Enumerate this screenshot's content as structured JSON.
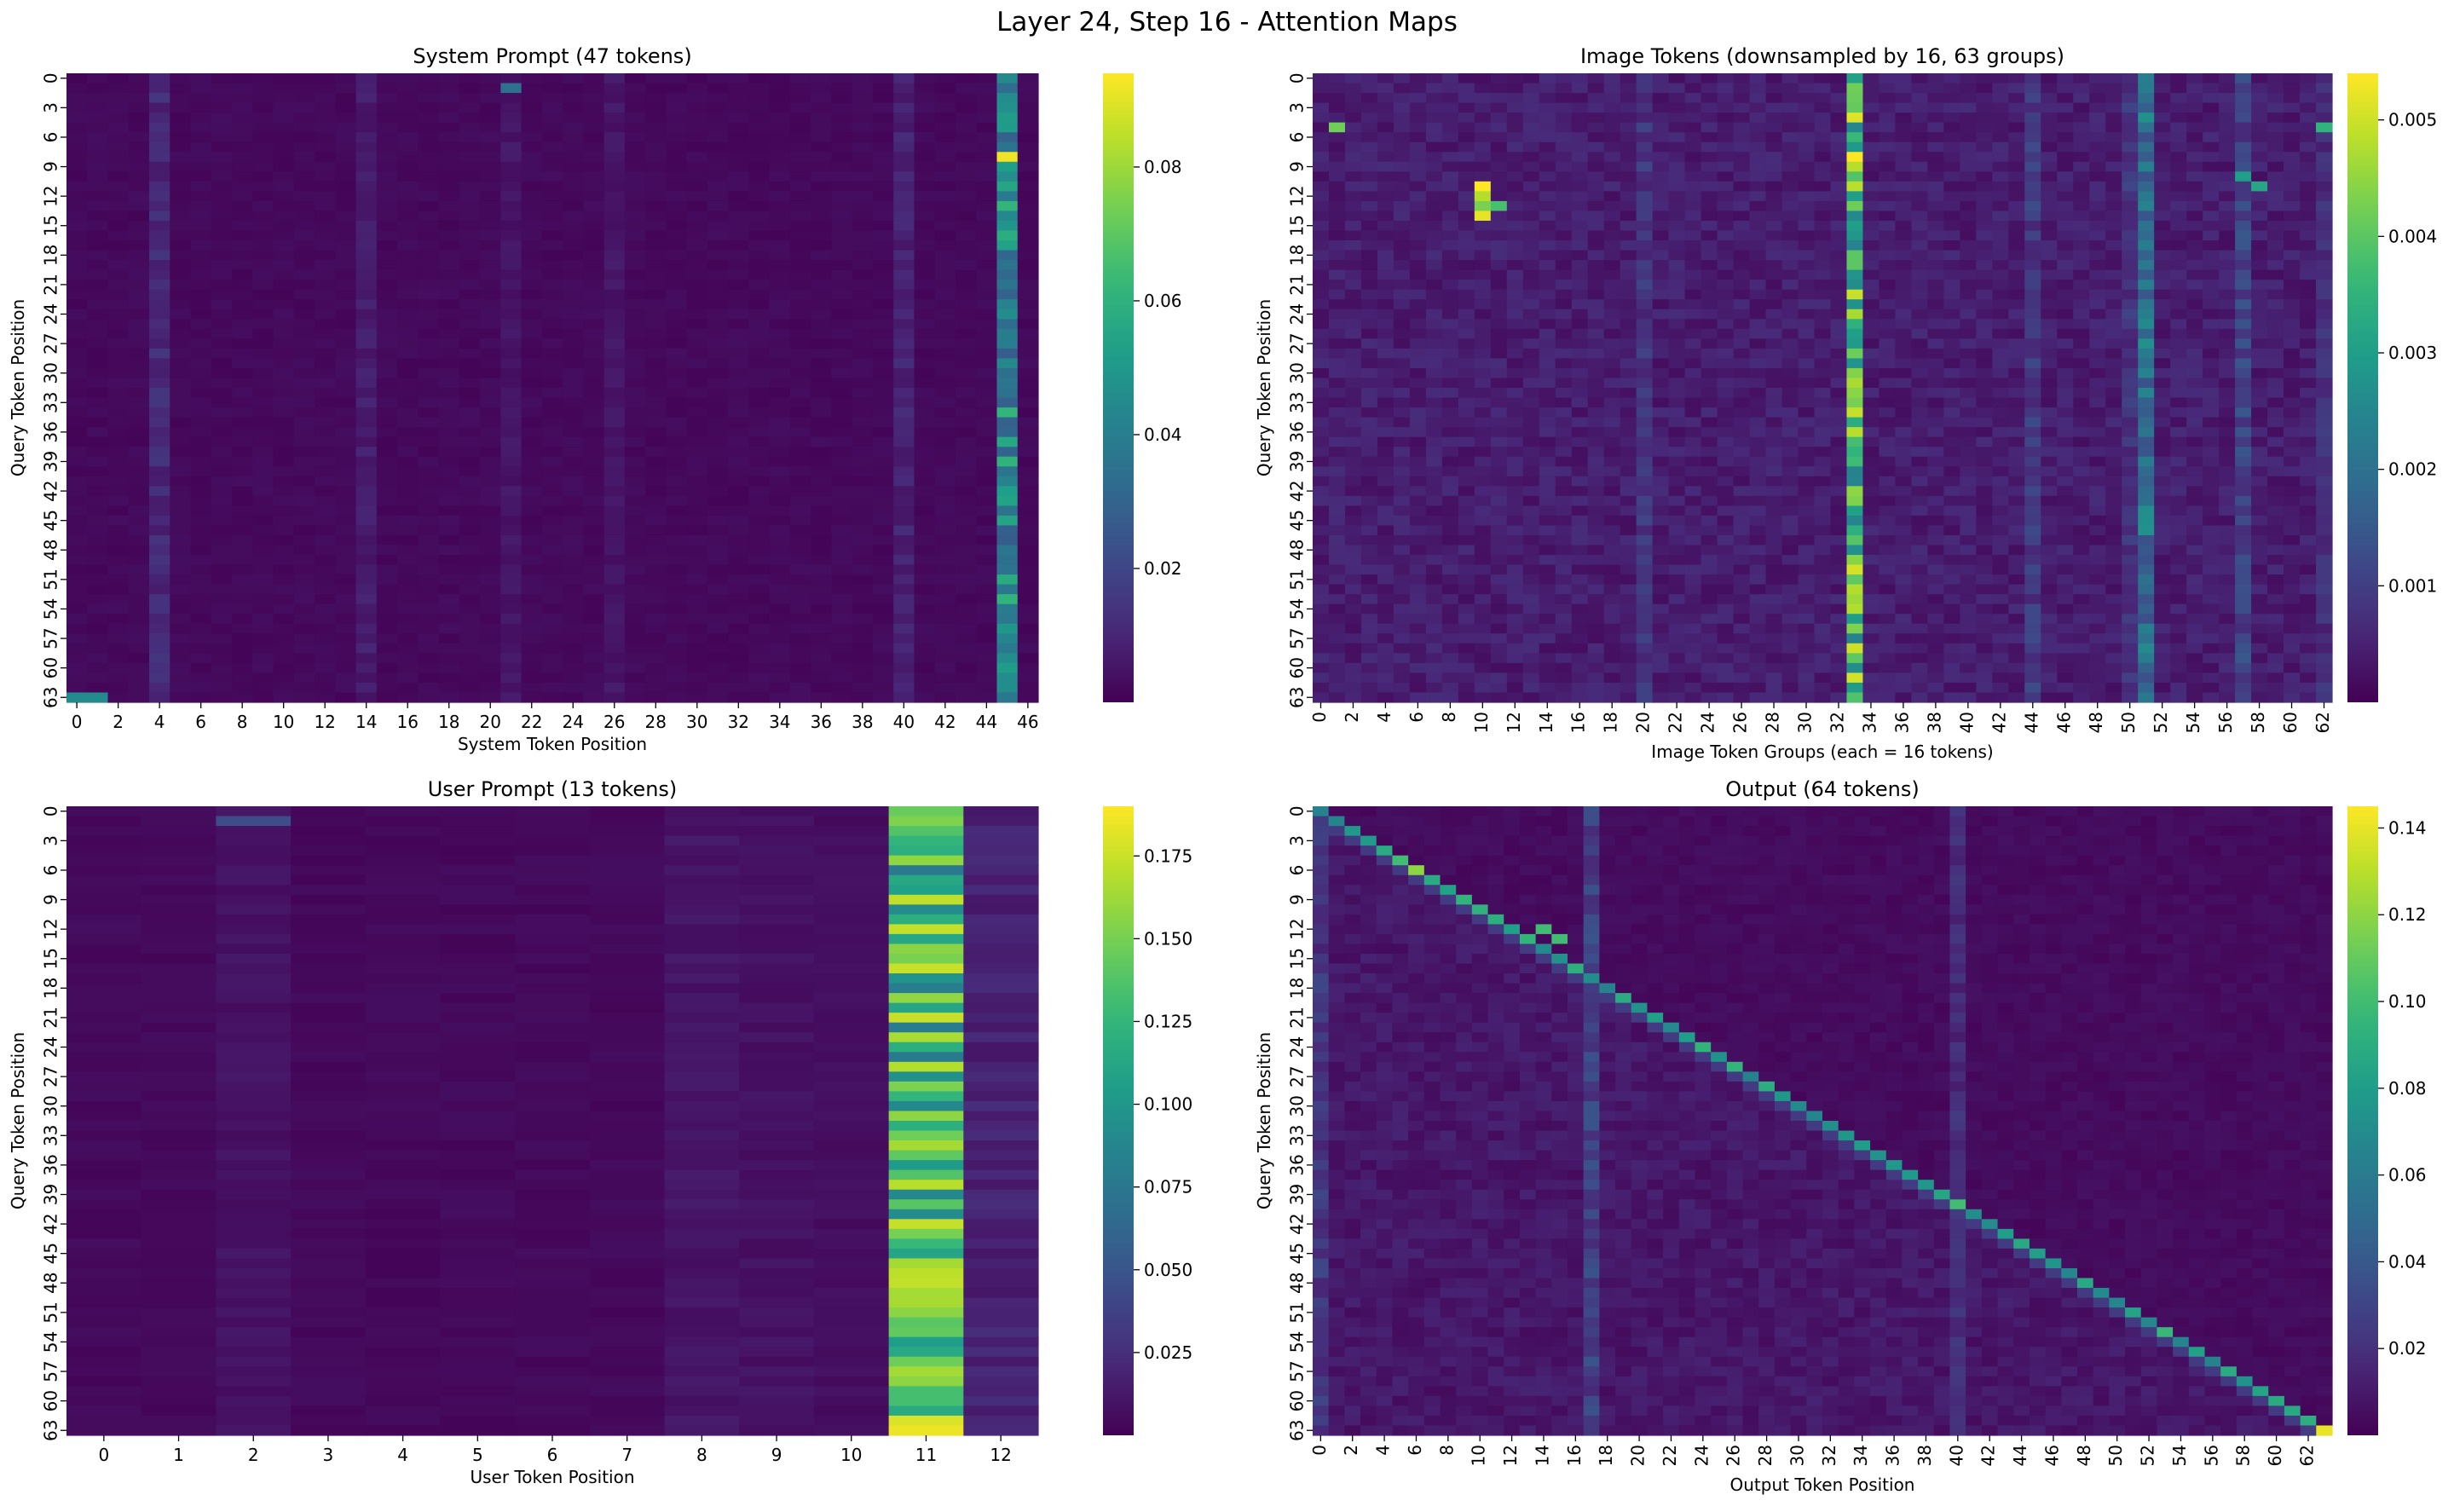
{
  "figure": {
    "title": "Layer 24, Step 16 - Attention Maps"
  },
  "colors": {
    "colormap": "viridis",
    "viridis_stops": [
      "#440154",
      "#482878",
      "#3e4989",
      "#31688e",
      "#26828e",
      "#1f9e89",
      "#35b779",
      "#6ece58",
      "#b5de2b",
      "#fde725"
    ]
  },
  "chart_data": [
    {
      "type": "heatmap",
      "title": "System Prompt (47 tokens)",
      "xlabel": "System Token Position",
      "ylabel": "Query Token Position",
      "n_cols": 47,
      "n_rows": 64,
      "x_ticks": [
        0,
        2,
        4,
        6,
        8,
        10,
        12,
        14,
        16,
        18,
        20,
        22,
        24,
        26,
        28,
        30,
        32,
        34,
        36,
        38,
        40,
        42,
        44,
        46
      ],
      "y_ticks": [
        0,
        3,
        6,
        9,
        12,
        15,
        18,
        21,
        24,
        27,
        30,
        33,
        36,
        39,
        42,
        45,
        48,
        51,
        54,
        57,
        60,
        63
      ],
      "colorbar": {
        "vmin": 0.0,
        "vmax": 0.094,
        "ticks": [
          "0.02",
          "0.04",
          "0.06",
          "0.08"
        ],
        "tick_values": [
          0.02,
          0.04,
          0.06,
          0.08
        ]
      },
      "baseline": 0.002,
      "column_profile": [
        {
          "col": 4,
          "value": 0.012
        },
        {
          "col": 14,
          "value": 0.008
        },
        {
          "col": 21,
          "value": 0.006
        },
        {
          "col": 26,
          "value": 0.006
        },
        {
          "col": 40,
          "value": 0.01
        },
        {
          "col": 45,
          "value": 0.05
        }
      ],
      "highlights": [
        {
          "row": 8,
          "col": 45,
          "value": 0.092
        },
        {
          "row": 1,
          "col": 21,
          "value": 0.035
        },
        {
          "row": 63,
          "col": 0,
          "value": 0.045
        },
        {
          "row": 63,
          "col": 1,
          "value": 0.045
        }
      ]
    },
    {
      "type": "heatmap",
      "title": "Image Tokens (downsampled by 16, 63 groups)",
      "xlabel": "Image Token Groups (each = 16 tokens)",
      "ylabel": "Query Token Position",
      "n_cols": 63,
      "n_rows": 64,
      "x_ticks": [
        0,
        2,
        4,
        6,
        8,
        10,
        12,
        14,
        16,
        18,
        20,
        22,
        24,
        26,
        28,
        30,
        32,
        34,
        36,
        38,
        40,
        42,
        44,
        46,
        48,
        50,
        52,
        54,
        56,
        58,
        60,
        62
      ],
      "y_ticks": [
        0,
        3,
        6,
        9,
        12,
        15,
        18,
        21,
        24,
        27,
        30,
        33,
        36,
        39,
        42,
        45,
        48,
        51,
        54,
        57,
        60,
        63
      ],
      "colorbar": {
        "vmin": 0.0,
        "vmax": 0.0054,
        "ticks": [
          "0.001",
          "0.002",
          "0.003",
          "0.004",
          "0.005"
        ],
        "tick_values": [
          0.001,
          0.002,
          0.003,
          0.004,
          0.005
        ]
      },
      "baseline": 0.0004,
      "column_profile": [
        {
          "col": 20,
          "value": 0.0009
        },
        {
          "col": 33,
          "value": 0.0042
        },
        {
          "col": 44,
          "value": 0.001
        },
        {
          "col": 50,
          "value": 0.0009
        },
        {
          "col": 51,
          "value": 0.0022
        },
        {
          "col": 57,
          "value": 0.0012
        },
        {
          "col": 62,
          "value": 0.0008
        }
      ],
      "highlights": [
        {
          "row": 11,
          "col": 10,
          "value": 0.0054
        },
        {
          "row": 12,
          "col": 10,
          "value": 0.0048
        },
        {
          "row": 13,
          "col": 10,
          "value": 0.0043
        },
        {
          "row": 13,
          "col": 11,
          "value": 0.0038
        },
        {
          "row": 14,
          "col": 10,
          "value": 0.0052
        },
        {
          "row": 8,
          "col": 33,
          "value": 0.0054
        },
        {
          "row": 5,
          "col": 1,
          "value": 0.0042
        },
        {
          "row": 5,
          "col": 62,
          "value": 0.0035
        },
        {
          "row": 10,
          "col": 57,
          "value": 0.003
        },
        {
          "row": 11,
          "col": 58,
          "value": 0.0032
        }
      ]
    },
    {
      "type": "heatmap",
      "title": "User Prompt (13 tokens)",
      "xlabel": "User Token Position",
      "ylabel": "Query Token Position",
      "n_cols": 13,
      "n_rows": 64,
      "x_ticks": [
        0,
        1,
        2,
        3,
        4,
        5,
        6,
        7,
        8,
        9,
        10,
        11,
        12
      ],
      "y_ticks": [
        0,
        3,
        6,
        9,
        12,
        15,
        18,
        21,
        24,
        27,
        30,
        33,
        36,
        39,
        42,
        45,
        48,
        51,
        54,
        57,
        60,
        63
      ],
      "colorbar": {
        "vmin": 0.0,
        "vmax": 0.19,
        "ticks": [
          "0.025",
          "0.050",
          "0.075",
          "0.100",
          "0.125",
          "0.150",
          "0.175"
        ],
        "tick_values": [
          0.025,
          0.05,
          0.075,
          0.1,
          0.125,
          0.15,
          0.175
        ]
      },
      "baseline": 0.004,
      "column_profile": [
        {
          "col": 2,
          "value": 0.01
        },
        {
          "col": 8,
          "value": 0.012
        },
        {
          "col": 9,
          "value": 0.01
        },
        {
          "col": 10,
          "value": 0.008
        },
        {
          "col": 11,
          "value": 0.14
        },
        {
          "col": 12,
          "value": 0.02
        }
      ],
      "highlights": [
        {
          "row": 63,
          "col": 11,
          "value": 0.185
        },
        {
          "row": 62,
          "col": 11,
          "value": 0.18
        },
        {
          "row": 1,
          "col": 2,
          "value": 0.045
        }
      ]
    },
    {
      "type": "heatmap",
      "title": "Output (64 tokens)",
      "xlabel": "Output Token Position",
      "ylabel": "Query Token Position",
      "n_cols": 64,
      "n_rows": 64,
      "x_ticks": [
        0,
        2,
        4,
        6,
        8,
        10,
        12,
        14,
        16,
        18,
        20,
        22,
        24,
        26,
        28,
        30,
        32,
        34,
        36,
        38,
        40,
        42,
        44,
        46,
        48,
        50,
        52,
        54,
        56,
        58,
        60,
        62
      ],
      "y_ticks": [
        0,
        3,
        6,
        9,
        12,
        15,
        18,
        21,
        24,
        27,
        30,
        33,
        36,
        39,
        42,
        45,
        48,
        51,
        54,
        57,
        60,
        63
      ],
      "colorbar": {
        "vmin": 0.0,
        "vmax": 0.145,
        "ticks": [
          "0.02",
          "0.04",
          "0.06",
          "0.08",
          "0.10",
          "0.12",
          "0.14"
        ],
        "tick_values": [
          0.02,
          0.04,
          0.06,
          0.08,
          0.1,
          0.12,
          0.14
        ]
      },
      "baseline": 0.004,
      "column_profile": [
        {
          "col": 0,
          "value": 0.025
        },
        {
          "col": 17,
          "value": 0.03
        },
        {
          "col": 40,
          "value": 0.02
        }
      ],
      "diagonal_value": 0.085,
      "highlights": [
        {
          "row": 63,
          "col": 63,
          "value": 0.14
        },
        {
          "row": 6,
          "col": 6,
          "value": 0.12
        },
        {
          "row": 5,
          "col": 5,
          "value": 0.1
        },
        {
          "row": 12,
          "col": 14,
          "value": 0.1
        },
        {
          "row": 13,
          "col": 15,
          "value": 0.1
        },
        {
          "row": 40,
          "col": 40,
          "value": 0.1
        }
      ]
    }
  ]
}
